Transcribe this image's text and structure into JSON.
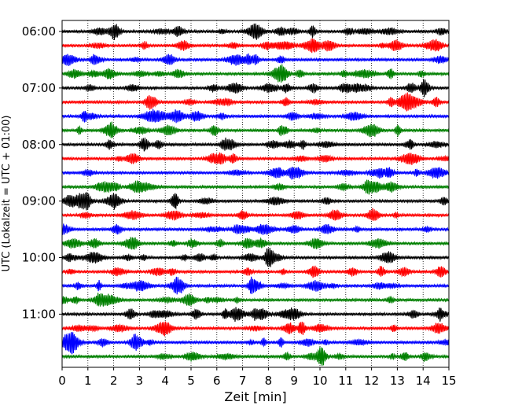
{
  "chart_data": {
    "type": "line",
    "title": "",
    "xlabel": "Zeit  [min]",
    "ylabel": "UTC (Lokalzeit = UTC + 01:00)",
    "xlim": [
      0,
      15
    ],
    "x_ticks": [
      "0",
      "1",
      "2",
      "3",
      "4",
      "5",
      "6",
      "7",
      "8",
      "9",
      "10",
      "11",
      "12",
      "13",
      "14",
      "15"
    ],
    "y_tick_labels": [
      "06:00",
      "07:00",
      "08:00",
      "09:00",
      "10:00",
      "11:00"
    ],
    "trace_count": 24,
    "trace_interval_minutes": 15,
    "first_trace_time": "06:00",
    "trace_colors": [
      "#000000",
      "#ff0000",
      "#0000ff",
      "#008000"
    ],
    "grid": {
      "x_dotted": true
    },
    "note": "Seismogram helicorder: each trace spans 15 minutes; waveform amplitudes approximated as noise."
  }
}
